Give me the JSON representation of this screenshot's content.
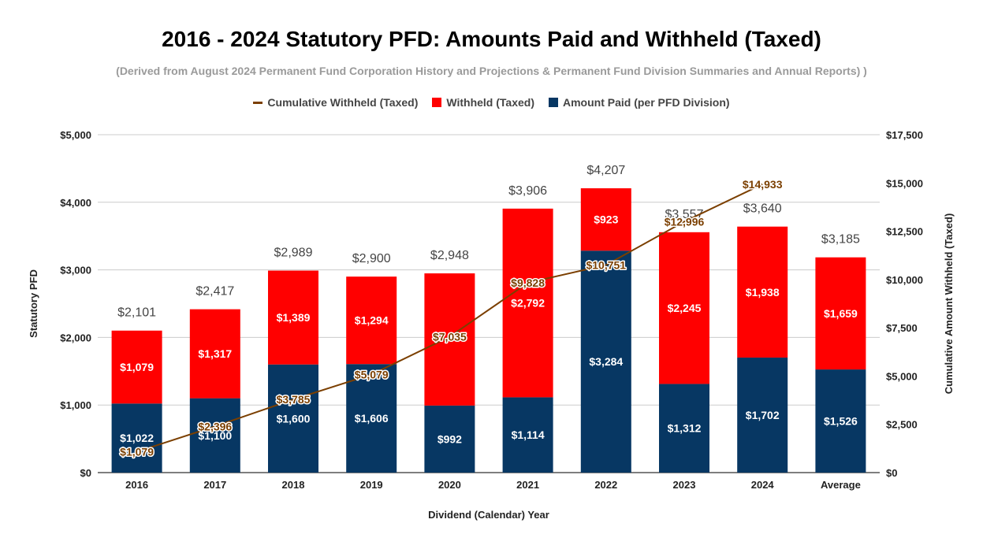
{
  "title": "2016 - 2024 Statutory PFD: Amounts Paid and Withheld (Taxed)",
  "subtitle": "(Derived from August 2024 Permanent Fund Corporation History and Projections & Permanent Fund Division Summaries and Annual Reports) )",
  "legend": [
    {
      "label": "Cumulative Withheld (Taxed)",
      "kind": "line",
      "color": "#7b3f00"
    },
    {
      "label": "Withheld (Taxed)",
      "kind": "box",
      "color": "#ff0000"
    },
    {
      "label": "Amount Paid (per PFD Division)",
      "kind": "box",
      "color": "#073763"
    }
  ],
  "chart_data": {
    "type": "bar",
    "stacked": true,
    "categories": [
      "2016",
      "2017",
      "2018",
      "2019",
      "2020",
      "2021",
      "2022",
      "2023",
      "2024",
      "Average"
    ],
    "series": [
      {
        "name": "Amount Paid (per PFD Division)",
        "color": "#073763",
        "values": [
          1022,
          1100,
          1600,
          1606,
          992,
          1114,
          3284,
          1312,
          1702,
          1526
        ],
        "labels": [
          "$1,022",
          "$1,100",
          "$1,600",
          "$1,606",
          "$992",
          "$1,114",
          "$3,284",
          "$1,312",
          "$1,702",
          "$1,526"
        ]
      },
      {
        "name": "Withheld (Taxed)",
        "color": "#ff0000",
        "values": [
          1079,
          1317,
          1389,
          1294,
          1956,
          2792,
          923,
          2245,
          1938,
          1659
        ],
        "labels": [
          "$1,079",
          "$1,317",
          "$1,389",
          "$1,294",
          "",
          "$2,792",
          "$923",
          "$2,245",
          "$1,938",
          "$1,659"
        ]
      }
    ],
    "totals": [
      2101,
      2417,
      2989,
      2900,
      2948,
      3906,
      4207,
      3557,
      3640,
      3185
    ],
    "total_labels": [
      "$2,101",
      "$2,417",
      "$2,989",
      "$2,900",
      "$2,948",
      "$3,906",
      "$4,207",
      "$3,557",
      "$3,640",
      "$3,185"
    ],
    "line_series": {
      "name": "Cumulative Withheld (Taxed)",
      "color": "#7b3f00",
      "axis": "right",
      "categories": [
        "2016",
        "2017",
        "2018",
        "2019",
        "2020",
        "2021",
        "2022",
        "2023",
        "2024"
      ],
      "values": [
        1079,
        2396,
        3785,
        5079,
        7035,
        9828,
        10751,
        12996,
        14933
      ],
      "labels": [
        "$1,079",
        "$2,396",
        "$3,785",
        "$5,079",
        "$7,035",
        "$9,828",
        "$10,751",
        "$12,996",
        "$14,933"
      ]
    },
    "xlabel": "Dividend (Calendar) Year",
    "ylabel": "Statutory PFD",
    "y2label": "Cumulative Amount Withheld (Taxed)",
    "ylim": [
      0,
      5000
    ],
    "y2lim": [
      0,
      17500
    ],
    "yticks": [
      "$0",
      "$1,000",
      "$2,000",
      "$3,000",
      "$4,000",
      "$5,000"
    ],
    "y2ticks": [
      "$0",
      "$2,500",
      "$5,000",
      "$7,500",
      "$10,000",
      "$12,500",
      "$15,000",
      "$17,500"
    ],
    "grid": true,
    "legend_position": "top"
  }
}
